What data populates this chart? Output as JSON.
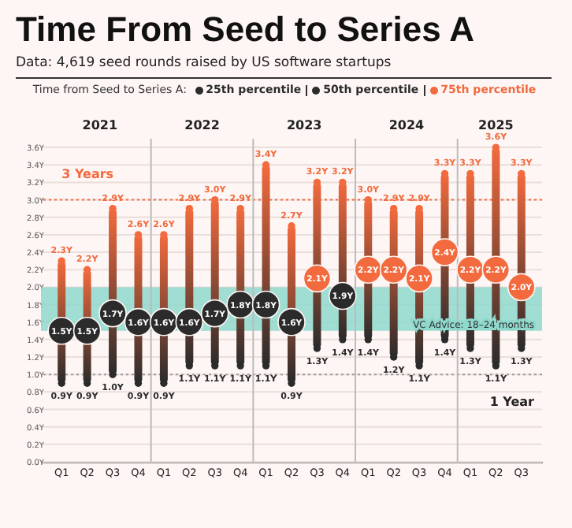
{
  "chart_data": {
    "type": "bar",
    "title": "Time From Seed to Series A",
    "subtitle": "Data: 4,619 seed rounds raised by US software startups",
    "legend_title": "Time from Seed to Series A:",
    "legend": "top",
    "categories": [
      "Q1",
      "Q2",
      "Q3",
      "Q4",
      "Q1",
      "Q2",
      "Q3",
      "Q4",
      "Q1",
      "Q2",
      "Q3",
      "Q4",
      "Q1",
      "Q2",
      "Q3",
      "Q4",
      "Q1",
      "Q2",
      "Q3"
    ],
    "series": [
      {
        "color": "#f26a3d",
        "base": [
          0.9,
          0.9,
          1.0,
          0.9,
          0.9,
          1.1,
          1.1,
          1.1,
          1.1,
          0.9,
          1.3,
          1.4,
          1.4,
          1.2,
          1.1,
          1.4,
          1.3,
          1.1,
          1.3
        ],
        "values": [
          1.4,
          1.3,
          1.9,
          1.7,
          1.7,
          1.8,
          1.9,
          1.8,
          2.3,
          1.8,
          1.9,
          1.8,
          1.6,
          1.7,
          1.8,
          1.9,
          2.0,
          2.5,
          2.0
        ]
      },
      {
        "type": "scatter",
        "name": "25th percentile",
        "marker": "circle",
        "color": "#2b2b2b",
        "values": [
          0.9,
          0.9,
          1.0,
          0.9,
          0.9,
          1.1,
          1.1,
          1.1,
          1.1,
          0.9,
          1.3,
          1.4,
          1.4,
          1.2,
          1.1,
          1.4,
          1.3,
          1.1,
          1.3
        ],
        "value_labels": [
          "0.9Y",
          "0.9Y",
          "1.0Y",
          "0.9Y",
          "0.9Y",
          "1.1Y",
          "1.1Y",
          "1.1Y",
          "1.1Y",
          "0.9Y",
          "1.3Y",
          "1.4Y",
          "1.4Y",
          "1.2Y",
          "1.1Y",
          "1.4Y",
          "1.3Y",
          "1.1Y",
          "1.3Y"
        ]
      },
      {
        "type": "scatter",
        "name": "50th percentile",
        "marker": "circle",
        "color": "#2b2b2b",
        "colors": [
          "#2b2b2b",
          "#2b2b2b",
          "#2b2b2b",
          "#2b2b2b",
          "#2b2b2b",
          "#2b2b2b",
          "#2b2b2b",
          "#2b2b2b",
          "#2b2b2b",
          "#2b2b2b",
          "#f26a3d",
          "#2b2b2b",
          "#f26a3d",
          "#f26a3d",
          "#f26a3d",
          "#f26a3d",
          "#f26a3d",
          "#f26a3d",
          "#f26a3d"
        ],
        "values": [
          1.5,
          1.5,
          1.7,
          1.6,
          1.6,
          1.6,
          1.7,
          1.8,
          1.8,
          1.6,
          2.1,
          1.9,
          2.2,
          2.2,
          2.1,
          2.4,
          2.2,
          2.2,
          2.0
        ],
        "value_labels": [
          "1.5Y",
          "1.5Y",
          "1.7Y",
          "1.6Y",
          "1.6Y",
          "1.6Y",
          "1.7Y",
          "1.8Y",
          "1.8Y",
          "1.6Y",
          "2.1Y",
          "1.9Y",
          "2.2Y",
          "2.2Y",
          "2.1Y",
          "2.4Y",
          "2.2Y",
          "2.2Y",
          "2.0Y"
        ]
      },
      {
        "type": "scatter",
        "name": "75th percentile",
        "marker": "circle",
        "color": "#f26a3d",
        "values": [
          2.3,
          2.2,
          2.9,
          2.6,
          2.6,
          2.9,
          3.0,
          2.9,
          3.4,
          2.7,
          3.2,
          3.2,
          3.0,
          2.9,
          2.9,
          3.3,
          3.3,
          3.6,
          3.3
        ],
        "value_labels": [
          "2.3Y",
          "2.2Y",
          "2.9Y",
          "2.6Y",
          "2.6Y",
          "2.9Y",
          "3.0Y",
          "2.9Y",
          "3.4Y",
          "2.7Y",
          "3.2Y",
          "3.2Y",
          "3.0Y",
          "2.9Y",
          "2.9Y",
          "3.3Y",
          "3.3Y",
          "3.6Y",
          "3.3Y"
        ]
      }
    ],
    "ylim": [
      0,
      3.7
    ],
    "yticks": [
      {
        "value": 0,
        "label": "0.0Y"
      },
      {
        "value": 0.2,
        "label": "0.2Y"
      },
      {
        "value": 0.4,
        "label": "0.4Y"
      },
      {
        "value": 0.6,
        "label": "0.6Y"
      },
      {
        "value": 0.8,
        "label": "0.8Y"
      },
      {
        "value": 1.0,
        "label": "1.0Y"
      },
      {
        "value": 1.2,
        "label": "1.2Y"
      },
      {
        "value": 1.4,
        "label": "1.4Y"
      },
      {
        "value": 1.6,
        "label": "1.6Y"
      },
      {
        "value": 1.8,
        "label": "1.8Y"
      },
      {
        "value": 2.0,
        "label": "2.0Y"
      },
      {
        "value": 2.2,
        "label": "2.2Y"
      },
      {
        "value": 2.4,
        "label": "2.4Y"
      },
      {
        "value": 2.6,
        "label": "2.6Y"
      },
      {
        "value": 2.8,
        "label": "2.8Y"
      },
      {
        "value": 3.0,
        "label": "3.0Y"
      },
      {
        "value": 3.2,
        "label": "3.2Y"
      },
      {
        "value": 3.4,
        "label": "3.4Y"
      },
      {
        "value": 3.6,
        "label": "3.6Y"
      }
    ],
    "grid": "y",
    "bands": [
      {
        "axis": "y",
        "from": 1.5,
        "to": 2.0,
        "label": "VC Advice: 18–24 months",
        "color": "#8fd8cc"
      }
    ],
    "ref_lines": [
      {
        "axis": "y",
        "value": 3.0,
        "label": "3 Years",
        "color": "#f26a3d",
        "line_style": "dotted"
      },
      {
        "axis": "y",
        "value": 1.0,
        "label": "1 Year",
        "color": "#999999",
        "line_style": "dotted"
      }
    ],
    "annotations": [
      "2021",
      "2022",
      "2023",
      "2024",
      "2025"
    ]
  }
}
